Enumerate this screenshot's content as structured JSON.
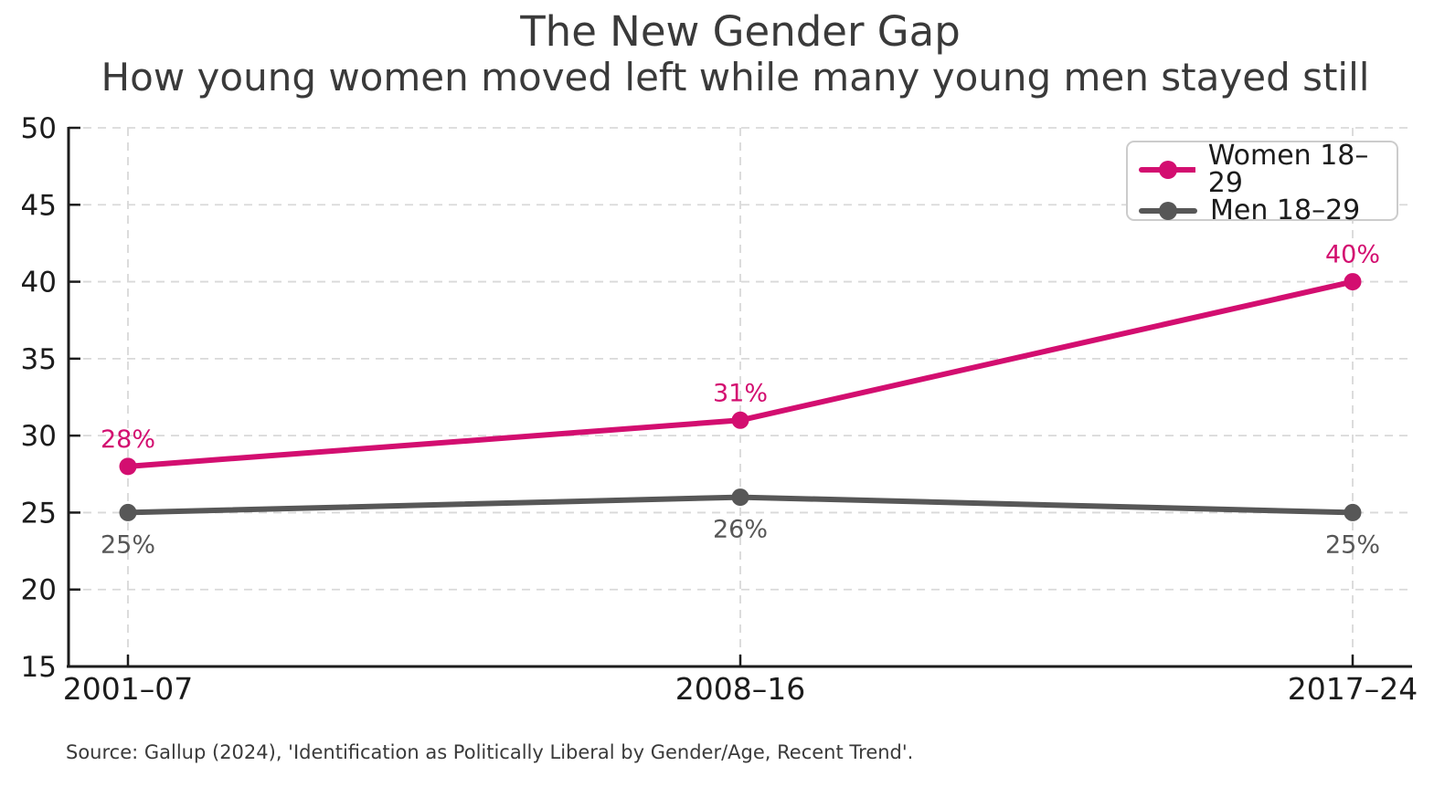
{
  "colors": {
    "women": "#D30E70",
    "men": "#575757",
    "axis": "#1c1c1c",
    "grid": "#d9d9d9",
    "title_text": "#3a3a3a",
    "tick_text": "#1c1c1c",
    "source_text": "#3a3a3a",
    "legend_border": "#cccccc",
    "background": "#ffffff"
  },
  "chart_data": {
    "type": "line",
    "title": "The New Gender Gap",
    "subtitle": "How young women moved left while many young men stayed still",
    "xlabel": "",
    "ylabel": "",
    "categories": [
      "2001–07",
      "2008–16",
      "2017–24"
    ],
    "series": [
      {
        "name": "Women 18–29",
        "values": [
          28,
          31,
          40
        ],
        "labels": [
          "28%",
          "31%",
          "40%"
        ],
        "label_position": "above",
        "color": "#D30E70"
      },
      {
        "name": "Men 18–29",
        "values": [
          25,
          26,
          25
        ],
        "labels": [
          "25%",
          "26%",
          "25%"
        ],
        "label_position": "below",
        "color": "#575757"
      }
    ],
    "ylim": [
      15,
      50
    ],
    "yticks": [
      15,
      20,
      25,
      30,
      35,
      40,
      45,
      50
    ],
    "grid": true,
    "grid_style": "dashed",
    "legend_position": "upper right"
  },
  "footer": {
    "source": "Source: Gallup (2024), 'Identification as Politically Liberal by Gender/Age, Recent Trend'."
  }
}
